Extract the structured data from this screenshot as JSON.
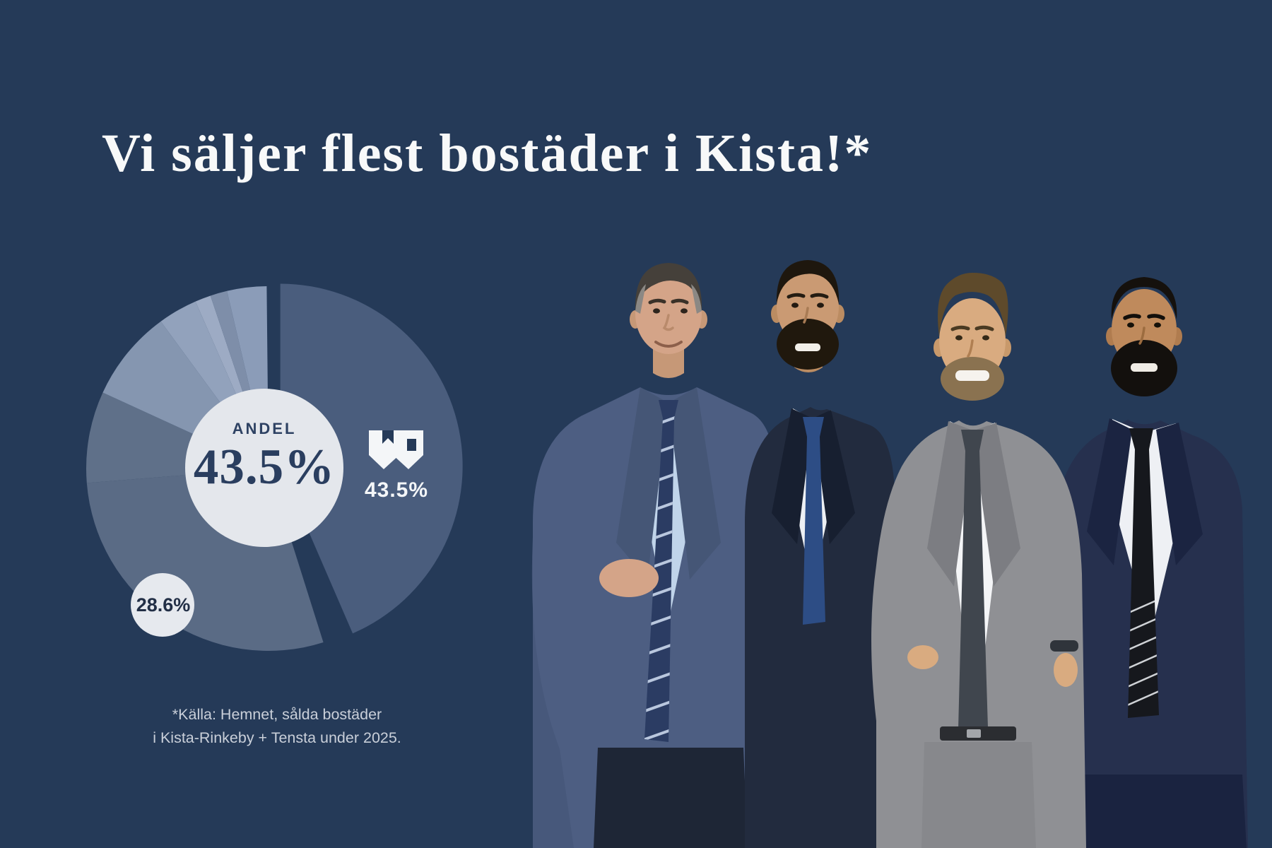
{
  "canvas": {
    "background_color": "#253a58"
  },
  "headline": {
    "text": "Vi säljer flest bostäder i Kista!*",
    "color": "#f8f9f9"
  },
  "chart_data": {
    "type": "pie",
    "title": "Vi säljer flest bostäder i Kista!*",
    "center_label": "ANDEL",
    "center_value": "43.5%",
    "callouts": {
      "main": "43.5%",
      "runner_up": "28.6%"
    },
    "legend_position": "none",
    "slices": [
      {
        "name": "our-share",
        "value": 43.5,
        "color": "#4a5d7d",
        "exploded": true,
        "label": "43.5%"
      },
      {
        "name": "second-broker",
        "value": 28.6,
        "color": "#5a6b85",
        "label": "28.6%"
      },
      {
        "name": "other-broker",
        "value": 8.1,
        "color": "#5f7089",
        "estimated": true
      },
      {
        "name": "other-broker",
        "value": 8.1,
        "color": "#8596b0",
        "estimated": true
      },
      {
        "name": "other-broker",
        "value": 3.5,
        "color": "#92a2bc",
        "estimated": true
      },
      {
        "name": "other-broker",
        "value": 1.4,
        "color": "#9dabc4",
        "estimated": true
      },
      {
        "name": "other-broker",
        "value": 1.5,
        "color": "#7e8ea9",
        "estimated": true
      },
      {
        "name": "other-broker",
        "value": 3.5,
        "color": "#8b9cb8",
        "estimated": true
      }
    ]
  },
  "icons": [
    {
      "name": "castle-icon",
      "color": "#f4f6f8"
    }
  ],
  "footnote": {
    "line1": "*Källa: Hemnet, sålda bostäder",
    "line2": "i Kista-Rinkeby + Tensta under 2025."
  },
  "photos": [
    {
      "name": "agent-photo-1",
      "description": "Agent in steel-blue suit, light blue shirt, striped navy tie, hands clasped"
    },
    {
      "name": "agent-photo-2",
      "description": "Agent with trimmed beard, very dark navy suit, solid navy tie"
    },
    {
      "name": "agent-photo-3",
      "description": "Smiling agent in light gray suit, white shirt, charcoal tie, hand on hip"
    },
    {
      "name": "agent-photo-4",
      "description": "Agent with full beard, dark navy suit, black tie with stripes"
    }
  ]
}
